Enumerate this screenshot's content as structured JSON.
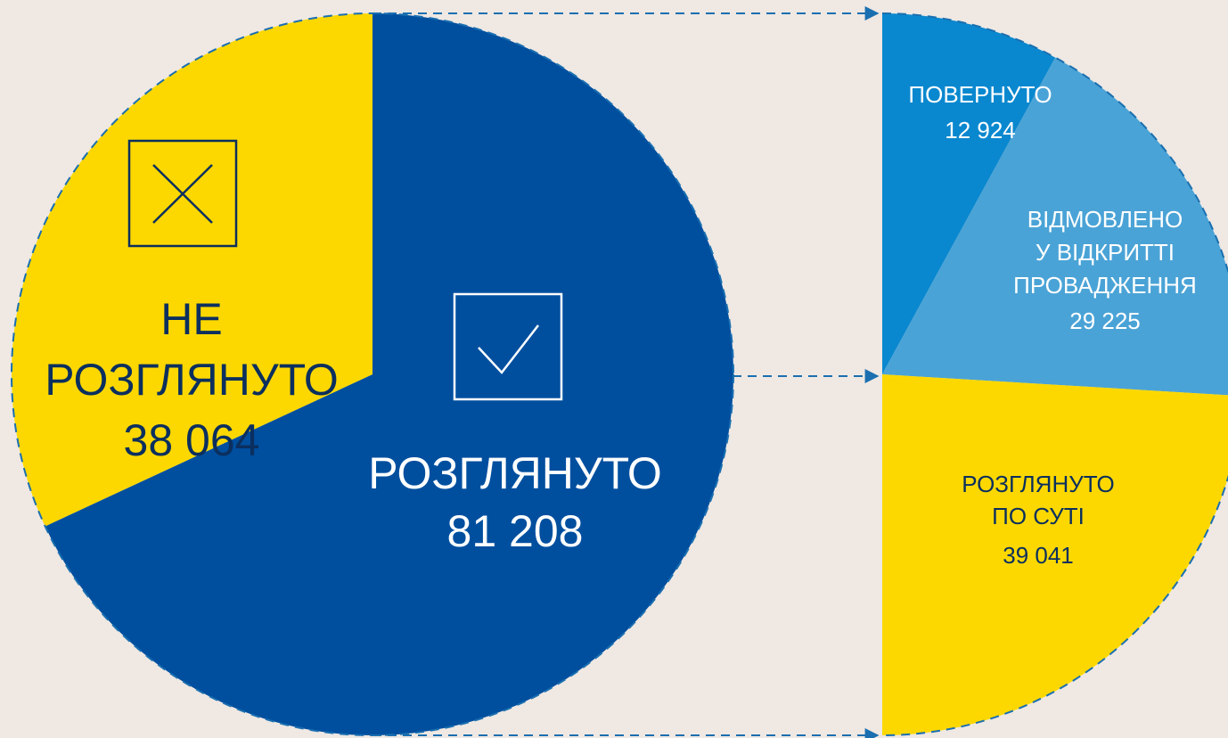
{
  "chart_data": [
    {
      "type": "pie",
      "categories": [
        [
          "РОЗГЛЯНУТО"
        ],
        [
          "НЕ",
          "РОЗГЛЯНУТО"
        ]
      ],
      "values": [
        81208,
        38064
      ],
      "value_labels": [
        "81 208",
        "38 064"
      ],
      "colors": [
        "#004f9f",
        "#fcd800"
      ],
      "label_colors": [
        "#ffffff",
        "#0b2f5e"
      ]
    },
    {
      "type": "pie",
      "categories": [
        [
          "ПОВЕРНУТО"
        ],
        [
          "ВІДМОВЛЕНО",
          "У ВІДКРИТТІ",
          "ПРОВАДЖЕННЯ"
        ],
        [
          "РОЗГЛЯНУТО",
          "ПО СУТІ"
        ]
      ],
      "values": [
        12924,
        29225,
        39041
      ],
      "value_labels": [
        "12 924",
        "29 225",
        "39 041"
      ],
      "colors": [
        "#0a88cf",
        "#4aa3d6",
        "#fcd800"
      ],
      "label_colors": [
        "#ffffff",
        "#ffffff",
        "#0b2f5e"
      ]
    }
  ]
}
